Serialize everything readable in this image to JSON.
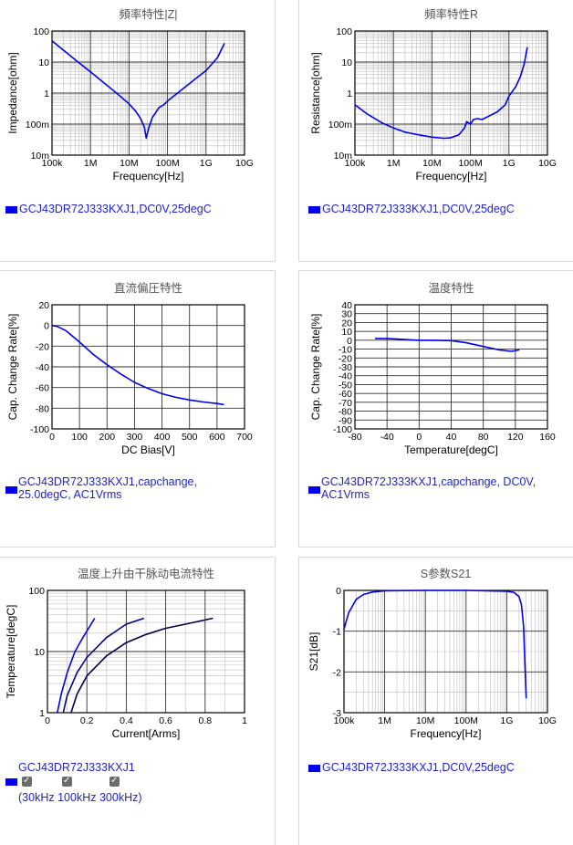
{
  "charts": [
    {
      "id": "z",
      "title": "頻率特性|Z|",
      "xlabel": "Frequency[Hz]",
      "ylabel": "Impedance[ohm]",
      "legend": "GCJ43DR72J333KXJ1,DC0V,25degC",
      "color": "#0000ee"
    },
    {
      "id": "r",
      "title": "頻率特性R",
      "xlabel": "Frequency[Hz]",
      "ylabel": "Resistance[ohm]",
      "legend": "GCJ43DR72J333KXJ1,DC0V,25degC",
      "color": "#0000ee"
    },
    {
      "id": "dc",
      "title": "直流偏圧特性",
      "xlabel": "DC Bias[V]",
      "ylabel": "Cap. Change Rate[%]",
      "legend_line1": "GCJ43DR72J333KXJ1,capchange,",
      "legend_line2": "25.0degC, AC1Vrms",
      "color": "#0000ee"
    },
    {
      "id": "temp",
      "title": "温度特性",
      "xlabel": "Temperature[degC]",
      "ylabel": "Cap. Change Rate[%]",
      "legend_line1": "GCJ43DR72J333KXJ1,capchange, DC0V,",
      "legend_line2": "AC1Vrms",
      "color": "#0000ee"
    },
    {
      "id": "rise",
      "title": "温度上升由干脉动电流特性",
      "xlabel": "Current[Arms]",
      "ylabel": "Temperature[degC]",
      "legend": "GCJ43DR72J333KXJ1",
      "freq_open": "(",
      "freq_labels": [
        "30kHz",
        "100kHz",
        "300kHz)"
      ],
      "color": "#0000ee"
    },
    {
      "id": "s21",
      "title": "S参数S21",
      "xlabel": "Frequency[Hz]",
      "ylabel": "S21[dB]",
      "legend": "GCJ43DR72J333KXJ1,DC0V,25degC",
      "color": "#0000ee"
    }
  ],
  "chart_data": [
    {
      "type": "line",
      "title": "頻率特性|Z|",
      "xlabel": "Frequency[Hz]",
      "ylabel": "Impedance[ohm]",
      "xscale": "log",
      "yscale": "log",
      "xlim": [
        100000,
        10000000000
      ],
      "ylim": [
        0.01,
        100
      ],
      "xticks": [
        "100k",
        "1M",
        "10M",
        "100M",
        "1G",
        "10G"
      ],
      "yticks": [
        "10m",
        "100m",
        "1",
        "10",
        "100"
      ],
      "series": [
        {
          "name": "GCJ43DR72J333KXJ1,DC0V,25degC",
          "x": [
            100000,
            200000,
            500000,
            1000000,
            2000000,
            5000000,
            10000000,
            15000000,
            20000000,
            25000000,
            28000000,
            32000000,
            40000000,
            60000000,
            80000000,
            100000000,
            200000000,
            500000000,
            1000000000,
            2000000000,
            3000000000
          ],
          "y": [
            48,
            24,
            9.5,
            4.8,
            2.4,
            0.95,
            0.45,
            0.26,
            0.15,
            0.08,
            0.035,
            0.07,
            0.16,
            0.34,
            0.42,
            0.55,
            1.1,
            2.7,
            5.3,
            14,
            40
          ]
        }
      ]
    },
    {
      "type": "line",
      "title": "頻率特性R",
      "xlabel": "Frequency[Hz]",
      "ylabel": "Resistance[ohm]",
      "xscale": "log",
      "yscale": "log",
      "xlim": [
        100000,
        10000000000
      ],
      "ylim": [
        0.01,
        100
      ],
      "xticks": [
        "100k",
        "1M",
        "10M",
        "100M",
        "1G",
        "10G"
      ],
      "yticks": [
        "10m",
        "100m",
        "1",
        "10",
        "100"
      ],
      "series": [
        {
          "name": "GCJ43DR72J333KXJ1,DC0V,25degC",
          "x": [
            100000,
            200000,
            500000,
            1000000,
            2000000,
            5000000,
            10000000,
            20000000,
            30000000,
            50000000,
            70000000,
            80000000,
            100000000,
            120000000,
            150000000,
            200000000,
            300000000,
            500000000,
            800000000,
            1000000000,
            1500000000,
            2000000000,
            2500000000,
            3000000000
          ],
          "y": [
            0.42,
            0.22,
            0.11,
            0.075,
            0.055,
            0.044,
            0.038,
            0.035,
            0.036,
            0.045,
            0.075,
            0.12,
            0.1,
            0.14,
            0.15,
            0.14,
            0.18,
            0.25,
            0.42,
            0.8,
            1.6,
            3.5,
            9,
            30
          ]
        }
      ]
    },
    {
      "type": "line",
      "title": "直流偏圧特性",
      "xlabel": "DC Bias[V]",
      "ylabel": "Cap. Change Rate[%]",
      "xlim": [
        0,
        700
      ],
      "ylim": [
        -100,
        20
      ],
      "xticks": [
        0,
        100,
        200,
        300,
        400,
        500,
        600,
        700
      ],
      "yticks": [
        20,
        0,
        -20,
        -40,
        -60,
        -80,
        -100
      ],
      "series": [
        {
          "name": "GCJ43DR72J333KXJ1,capchange, 25.0degC, AC1Vrms",
          "x": [
            0,
            20,
            50,
            100,
            150,
            200,
            250,
            300,
            350,
            400,
            450,
            500,
            550,
            600,
            625
          ],
          "y": [
            0,
            -1,
            -5,
            -16,
            -28,
            -38,
            -47,
            -55,
            -61,
            -66,
            -69.5,
            -72,
            -74,
            -75.5,
            -76.5
          ]
        }
      ]
    },
    {
      "type": "line",
      "title": "温度特性",
      "xlabel": "Temperature[degC]",
      "ylabel": "Cap. Change Rate[%]",
      "xlim": [
        -80,
        160
      ],
      "ylim": [
        -100,
        40
      ],
      "xticks": [
        -80,
        -40,
        0,
        40,
        80,
        120,
        160
      ],
      "yticks": [
        40,
        30,
        20,
        10,
        0,
        -10,
        -20,
        -30,
        -40,
        -50,
        -60,
        -70,
        -80,
        -90,
        -100
      ],
      "series": [
        {
          "name": "GCJ43DR72J333KXJ1,capchange, DC0V, AC1Vrms",
          "x": [
            -55,
            -40,
            -20,
            0,
            20,
            40,
            60,
            80,
            100,
            115,
            125
          ],
          "y": [
            2,
            2,
            1,
            0,
            0,
            -0.5,
            -3,
            -7,
            -11,
            -12.5,
            -11
          ]
        }
      ]
    },
    {
      "type": "line",
      "title": "温度上升由干脉动电流特性",
      "xlabel": "Current[Arms]",
      "ylabel": "Temperature[degC]",
      "yscale": "log",
      "xlim": [
        0,
        1
      ],
      "ylim": [
        1,
        100
      ],
      "xticks": [
        "0",
        "0.2",
        "0.4",
        "0.6",
        "0.8",
        "1"
      ],
      "yticks": [
        "1",
        "10",
        "100"
      ],
      "series": [
        {
          "name": "30kHz",
          "x": [
            0.05,
            0.07,
            0.1,
            0.14,
            0.18,
            0.24
          ],
          "y": [
            1,
            2,
            4.5,
            10,
            17,
            35
          ]
        },
        {
          "name": "100kHz",
          "x": [
            0.08,
            0.1,
            0.15,
            0.2,
            0.3,
            0.4,
            0.49
          ],
          "y": [
            1,
            1.9,
            4.5,
            8,
            17,
            28,
            35
          ]
        },
        {
          "name": "300kHz",
          "x": [
            0.12,
            0.15,
            0.2,
            0.3,
            0.4,
            0.5,
            0.6,
            0.7,
            0.84
          ],
          "y": [
            1,
            2,
            4,
            8.5,
            14,
            19,
            24,
            28,
            35
          ]
        }
      ]
    },
    {
      "type": "line",
      "title": "S参数S21",
      "xlabel": "Frequency[Hz]",
      "ylabel": "S21[dB]",
      "xscale": "log",
      "xlim": [
        100000,
        10000000000
      ],
      "ylim": [
        -3,
        0
      ],
      "xticks": [
        "100k",
        "1M",
        "10M",
        "100M",
        "1G",
        "10G"
      ],
      "yticks": [
        "0",
        "-1",
        "-2",
        "-3"
      ],
      "series": [
        {
          "name": "GCJ43DR72J333KXJ1,DC0V,25degC",
          "x": [
            100000,
            130000,
            200000,
            300000,
            500000,
            1000000,
            10000000,
            100000000,
            1000000000,
            1500000000,
            2000000000,
            2300000000,
            2600000000,
            2800000000,
            3000000000
          ],
          "y": [
            -0.95,
            -0.55,
            -0.22,
            -0.1,
            -0.04,
            -0.01,
            0,
            0,
            -0.02,
            -0.05,
            -0.15,
            -0.35,
            -0.9,
            -1.8,
            -2.65
          ]
        }
      ]
    }
  ]
}
